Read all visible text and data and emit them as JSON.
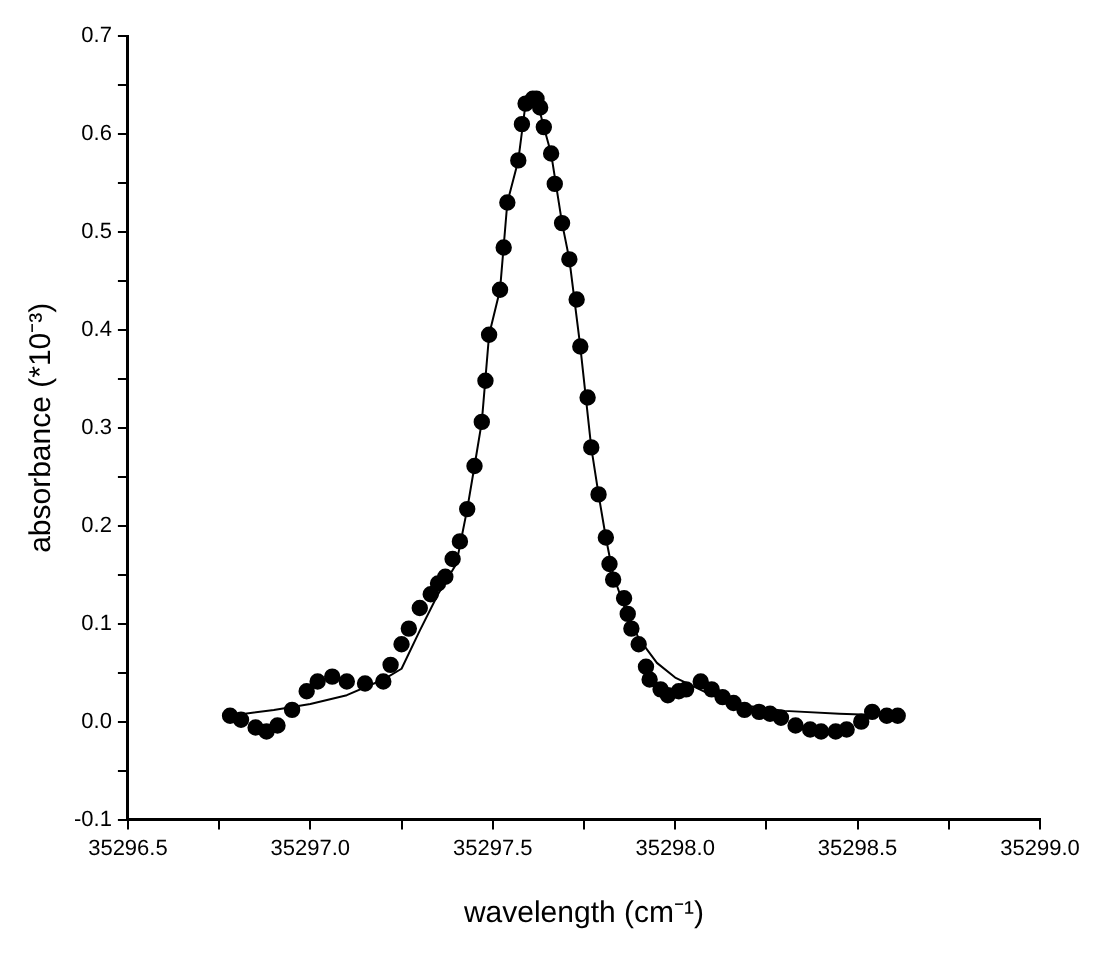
{
  "chart_data": {
    "type": "scatter",
    "xlabel": "wavelength (cm⁻¹)",
    "ylabel": "absorbance (*10⁻³)",
    "xlim": [
      35296.5,
      35299.0
    ],
    "ylim": [
      -0.1,
      0.7
    ],
    "xticks": [
      {
        "value": 35296.5,
        "label": "35296.5"
      },
      {
        "value": 35296.75,
        "label": null
      },
      {
        "value": 35297.0,
        "label": "35297.0"
      },
      {
        "value": 35297.25,
        "label": null
      },
      {
        "value": 35297.5,
        "label": "35297.5"
      },
      {
        "value": 35297.75,
        "label": null
      },
      {
        "value": 35298.0,
        "label": "35298.0"
      },
      {
        "value": 35298.25,
        "label": null
      },
      {
        "value": 35298.5,
        "label": "35298.5"
      },
      {
        "value": 35298.75,
        "label": null
      },
      {
        "value": 35299.0,
        "label": "35299.0"
      }
    ],
    "yticks": [
      -0.1,
      {
        "value": -0.05,
        "label": null
      },
      {
        "value": 0,
        "label": "0.0"
      },
      {
        "value": 0.05,
        "label": null
      },
      0.1,
      {
        "value": 0.15,
        "label": null
      },
      0.2,
      {
        "value": 0.25,
        "label": null
      },
      0.3,
      {
        "value": 0.35,
        "label": null
      },
      0.4,
      {
        "value": 0.45,
        "label": null
      },
      0.5,
      {
        "value": 0.55,
        "label": null
      },
      0.6,
      {
        "value": 0.65,
        "label": null
      },
      0.7
    ],
    "grid": false,
    "legend": false,
    "series": [
      {
        "marker": "circle",
        "color": "#000000",
        "x": [
          35296.78,
          35296.81,
          35296.85,
          35296.88,
          35296.91,
          35296.95,
          35296.99,
          35297.02,
          35297.06,
          35297.1,
          35297.15,
          35297.2,
          35297.22,
          35297.25,
          35297.27,
          35297.3,
          35297.33,
          35297.35,
          35297.37,
          35297.39,
          35297.41,
          35297.43,
          35297.45,
          35297.47,
          35297.48,
          35297.49,
          35297.52,
          35297.53,
          35297.54,
          35297.57,
          35297.58,
          35297.59,
          35297.61,
          35297.62,
          35297.63,
          35297.64,
          35297.66,
          35297.67,
          35297.69,
          35297.71,
          35297.73,
          35297.74,
          35297.76,
          35297.77,
          35297.79,
          35297.81,
          35297.82,
          35297.83,
          35297.86,
          35297.87,
          35297.88,
          35297.9,
          35297.92,
          35297.93,
          35297.96,
          35297.98,
          35298.01,
          35298.03,
          35298.07,
          35298.1,
          35298.13,
          35298.16,
          35298.19,
          35298.23,
          35298.26,
          35298.29,
          35298.33,
          35298.37,
          35298.4,
          35298.44,
          35298.47,
          35298.51,
          35298.54,
          35298.58,
          35298.61
        ],
        "values": [
          0.006,
          0.002,
          -0.006,
          -0.01,
          -0.004,
          0.012,
          0.031,
          0.041,
          0.046,
          0.041,
          0.039,
          0.041,
          0.058,
          0.079,
          0.095,
          0.116,
          0.13,
          0.141,
          0.148,
          0.166,
          0.184,
          0.217,
          0.261,
          0.306,
          0.348,
          0.395,
          0.441,
          0.484,
          0.53,
          0.573,
          0.61,
          0.631,
          0.636,
          0.636,
          0.627,
          0.607,
          0.58,
          0.549,
          0.509,
          0.472,
          0.431,
          0.383,
          0.331,
          0.28,
          0.232,
          0.188,
          0.161,
          0.145,
          0.126,
          0.11,
          0.095,
          0.079,
          0.056,
          0.043,
          0.033,
          0.027,
          0.031,
          0.033,
          0.041,
          0.033,
          0.025,
          0.019,
          0.012,
          0.01,
          0.008,
          0.004,
          -0.004,
          -0.008,
          -0.01,
          -0.01,
          -0.008,
          0,
          0.01,
          0.006,
          0.006
        ]
      },
      {
        "type": "line",
        "marker": "none",
        "line_style": "solid",
        "color": "#000000",
        "x": [
          35296.78,
          35296.9,
          35297.0,
          35297.1,
          35297.2,
          35297.25,
          35297.3,
          35297.35,
          35297.4,
          35297.43,
          35297.45,
          35297.47,
          35297.49,
          35297.52,
          35297.54,
          35297.57,
          35297.59,
          35297.62,
          35297.64,
          35297.66,
          35297.69,
          35297.71,
          35297.74,
          35297.77,
          35297.79,
          35297.81,
          35297.83,
          35297.86,
          35297.9,
          35297.95,
          35298.0,
          35298.1,
          35298.2,
          35298.3,
          35298.45,
          35298.61
        ],
        "values": [
          0.006,
          0.012,
          0.018,
          0.027,
          0.043,
          0.054,
          0.093,
          0.13,
          0.161,
          0.217,
          0.261,
          0.306,
          0.395,
          0.441,
          0.53,
          0.573,
          0.631,
          0.636,
          0.607,
          0.58,
          0.509,
          0.472,
          0.383,
          0.28,
          0.232,
          0.188,
          0.15,
          0.118,
          0.085,
          0.06,
          0.045,
          0.027,
          0.016,
          0.011,
          0.008,
          0.006
        ]
      }
    ]
  }
}
